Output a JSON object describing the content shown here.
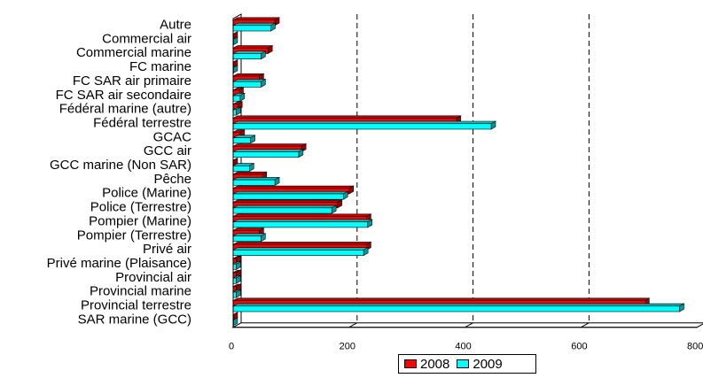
{
  "chart_data": {
    "type": "bar",
    "orientation": "horizontal",
    "three_d": true,
    "categories": [
      "Autre",
      "Commercial air",
      "Commercial marine",
      "FC marine",
      "FC SAR air primaire",
      "FC SAR air secondaire",
      "Fédéral marine (autre)",
      "Fédéral terrestre",
      "GCAC",
      "GCC air",
      "GCC marine (Non SAR)",
      "Pêche",
      "Police (Marine)",
      "Police (Terrestre)",
      "Pompier (Marine)",
      "Pompier (Terrestre)",
      "Privé air",
      "Privé marine (Plaisance)",
      "Provincial air",
      "Provincial marine",
      "Provincial terrestre",
      "SAR marine (GCC)"
    ],
    "series": [
      {
        "name": "2008",
        "color": "#ff0000",
        "values": [
          72,
          0,
          60,
          0,
          45,
          10,
          8,
          385,
          12,
          118,
          0,
          50,
          200,
          180,
          230,
          45,
          230,
          5,
          5,
          5,
          710,
          0
        ]
      },
      {
        "name": "2009",
        "color": "#00ffff",
        "values": [
          65,
          0,
          48,
          0,
          48,
          12,
          5,
          445,
          30,
          113,
          28,
          72,
          190,
          170,
          232,
          48,
          225,
          5,
          5,
          5,
          770,
          0
        ]
      }
    ],
    "xlim": [
      0,
      800
    ],
    "xticks": [
      "0",
      "200",
      "400",
      "600",
      "800"
    ],
    "grid": "vertical dashed",
    "legend_position": "bottom"
  }
}
